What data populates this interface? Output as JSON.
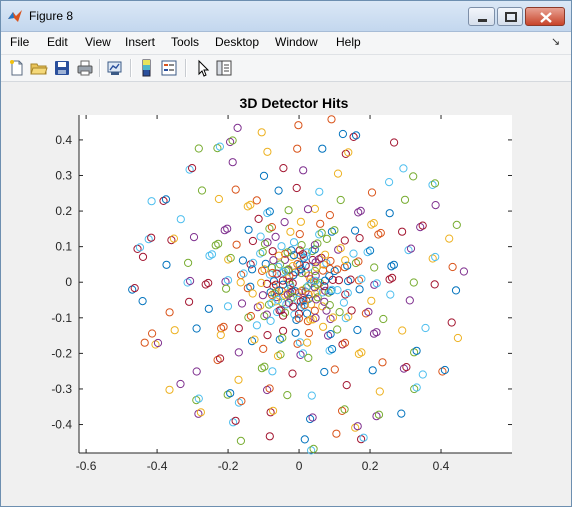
{
  "window": {
    "title": "Figure 8"
  },
  "menu": {
    "items": [
      "File",
      "Edit",
      "View",
      "Insert",
      "Tools",
      "Desktop",
      "Window",
      "Help"
    ],
    "dock_glyph": "↘"
  },
  "toolbar": {
    "buttons": [
      "new-figure-icon",
      "open-file-icon",
      "save-icon",
      "print-icon",
      "link-plot-icon",
      "colorbar-icon",
      "legend-icon",
      "pointer-icon",
      "property-editor-icon"
    ]
  },
  "chart_data": {
    "type": "scatter",
    "title": "3D Detector Hits",
    "xlabel": "",
    "ylabel": "",
    "xlim": [
      -0.62,
      0.6
    ],
    "ylim": [
      -0.48,
      0.47
    ],
    "xticks": [
      "-0.6",
      "-0.4",
      "-0.2",
      "0",
      "0.2",
      "0.4"
    ],
    "yticks": [
      "-0.4",
      "-0.3",
      "-0.2",
      "-0.1",
      "0",
      "0.1",
      "0.2",
      "0.3",
      "0.4"
    ],
    "xtick_values": [
      -0.6,
      -0.4,
      -0.2,
      0,
      0.2,
      0.4
    ],
    "ytick_values": [
      -0.4,
      -0.3,
      -0.2,
      -0.1,
      0,
      0.1,
      0.2,
      0.3,
      0.4
    ],
    "grid": false,
    "marker": "open-circle",
    "colors": [
      "#0072bd",
      "#d95319",
      "#edb120",
      "#7e2f8e",
      "#77ac30",
      "#4dbeee",
      "#a2142f"
    ],
    "rings": [
      {
        "radius": 0.03,
        "count": 20,
        "phase": 0.0
      },
      {
        "radius": 0.05,
        "count": 24,
        "phase": 0.4
      },
      {
        "radius": 0.07,
        "count": 26,
        "phase": 1.1
      },
      {
        "radius": 0.09,
        "count": 28,
        "phase": 0.7
      },
      {
        "radius": 0.11,
        "count": 22,
        "phase": 2.0
      },
      {
        "radius": 0.14,
        "count": 26,
        "phase": 1.5
      },
      {
        "radius": 0.17,
        "count": 26,
        "phase": 0.3
      },
      {
        "radius": 0.21,
        "count": 28,
        "phase": 2.4
      },
      {
        "radius": 0.26,
        "count": 28,
        "phase": 0.9
      },
      {
        "radius": 0.32,
        "count": 26,
        "phase": 1.7
      },
      {
        "radius": 0.38,
        "count": 26,
        "phase": 0.2
      },
      {
        "radius": 0.44,
        "count": 30,
        "phase": 2.8
      },
      {
        "radius": 0.47,
        "count": 20,
        "phase": 1.3
      }
    ]
  }
}
